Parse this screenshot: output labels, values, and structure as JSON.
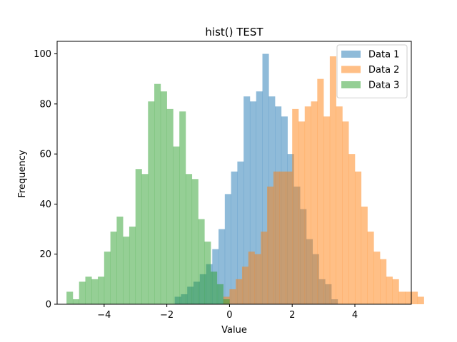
{
  "chart_data": {
    "type": "bar",
    "title": "hist() TEST",
    "xlabel": "Value",
    "ylabel": "Frequency",
    "xlim": [
      -5.5,
      5.8
    ],
    "ylim": [
      0,
      105
    ],
    "xticks": [
      -4,
      -2,
      0,
      2,
      4
    ],
    "yticks": [
      0,
      20,
      40,
      60,
      80,
      100
    ],
    "legend_position": "top-right",
    "series": [
      {
        "name": "Data 1",
        "color": "#1f77b4",
        "opacity": 0.5,
        "bin_start": -1.75,
        "bin_width": 0.2,
        "values": [
          3,
          4,
          7,
          9,
          12,
          16,
          22,
          30,
          44,
          53,
          57,
          83,
          81,
          85,
          100,
          83,
          79,
          75,
          60,
          47,
          38,
          26,
          20,
          10,
          8,
          2
        ]
      },
      {
        "name": "Data 2",
        "color": "#ff7f0e",
        "opacity": 0.5,
        "bin_start": -0.2,
        "bin_width": 0.2,
        "values": [
          3,
          6,
          10,
          15,
          21,
          20,
          29,
          47,
          53,
          53,
          53,
          78,
          73,
          79,
          81,
          90,
          75,
          99,
          79,
          73,
          60,
          53,
          39,
          29,
          21,
          18,
          11,
          10,
          5,
          5,
          5,
          3
        ]
      },
      {
        "name": "Data 3",
        "color": "#2ca02c",
        "opacity": 0.5,
        "bin_start": -5.2,
        "bin_width": 0.2,
        "values": [
          5,
          2,
          9,
          11,
          10,
          11,
          21,
          29,
          35,
          27,
          31,
          54,
          52,
          81,
          88,
          85,
          78,
          63,
          77,
          52,
          50,
          34,
          25,
          13,
          8,
          2
        ]
      }
    ]
  }
}
